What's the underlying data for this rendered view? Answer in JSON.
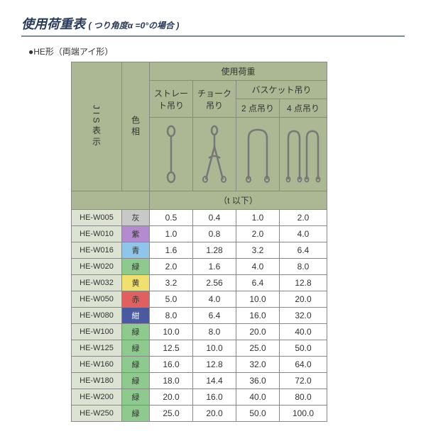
{
  "title": "使用荷重表",
  "subtitle": "( つり角度α =0°の場合 )",
  "subtype": "●HE形（両端アイ形）",
  "headers": {
    "jis": "JIS表示",
    "color": "色相",
    "load": "使用荷重",
    "straight": "ストレート吊り",
    "choke": "チョーク吊り",
    "basket": "バスケット吊り",
    "two_point": "2 点吊り",
    "four_point": "4 点吊り",
    "unit": "（t 以下）"
  },
  "colors": {
    "灰": "#c8c8c8",
    "紫": "#b48ad0",
    "青": "#8ec5e8",
    "緑": "#8ec98e",
    "黄": "#f0e070",
    "赤": "#e06060",
    "紺": "#4a5aa0"
  },
  "rows": [
    {
      "jis": "HE-W005",
      "color": "灰",
      "straight": "0.5",
      "choke": "0.4",
      "two": "1.0",
      "four": "2.0"
    },
    {
      "jis": "HE-W010",
      "color": "紫",
      "straight": "1.0",
      "choke": "0.8",
      "two": "2.0",
      "four": "4.0"
    },
    {
      "jis": "HE-W016",
      "color": "青",
      "straight": "1.6",
      "choke": "1.28",
      "two": "3.2",
      "four": "6.4"
    },
    {
      "jis": "HE-W020",
      "color": "緑",
      "straight": "2.0",
      "choke": "1.6",
      "two": "4.0",
      "four": "8.0"
    },
    {
      "jis": "HE-W032",
      "color": "黄",
      "straight": "3.2",
      "choke": "2.56",
      "two": "6.4",
      "four": "12.8"
    },
    {
      "jis": "HE-W050",
      "color": "赤",
      "straight": "5.0",
      "choke": "4.0",
      "two": "10.0",
      "four": "20.0"
    },
    {
      "jis": "HE-W080",
      "color": "紺",
      "straight": "8.0",
      "choke": "6.4",
      "two": "16.0",
      "four": "32.0"
    },
    {
      "jis": "HE-W100",
      "color": "緑",
      "straight": "10.0",
      "choke": "8.0",
      "two": "20.0",
      "four": "40.0"
    },
    {
      "jis": "HE-W125",
      "color": "緑",
      "straight": "12.5",
      "choke": "10.0",
      "two": "25.0",
      "four": "50.0"
    },
    {
      "jis": "HE-W160",
      "color": "緑",
      "straight": "16.0",
      "choke": "12.8",
      "two": "32.0",
      "four": "64.0"
    },
    {
      "jis": "HE-W180",
      "color": "緑",
      "straight": "18.0",
      "choke": "14.4",
      "two": "36.0",
      "four": "72.0"
    },
    {
      "jis": "HE-W200",
      "color": "緑",
      "straight": "20.0",
      "choke": "16.0",
      "two": "40.0",
      "four": "80.0"
    },
    {
      "jis": "HE-W250",
      "color": "緑",
      "straight": "25.0",
      "choke": "20.0",
      "two": "50.0",
      "four": "100.0"
    }
  ]
}
